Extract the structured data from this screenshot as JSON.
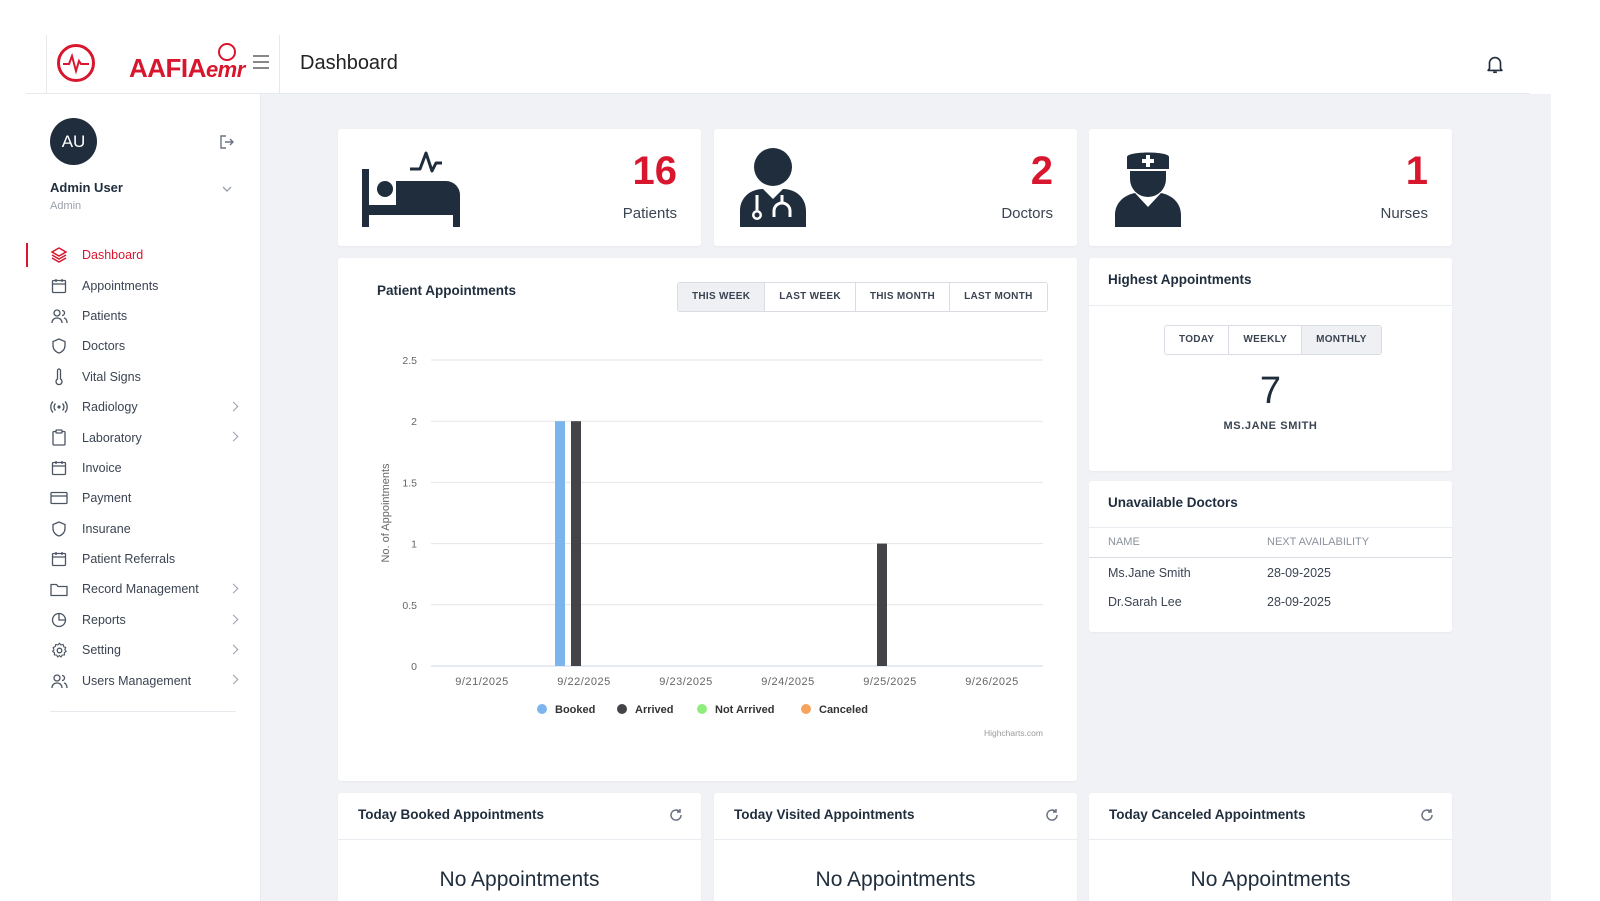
{
  "brand": {
    "logo_text": "AAFIA",
    "logo_suffix": "emr"
  },
  "header": {
    "title": "Dashboard",
    "bell_icon": "bell-icon"
  },
  "user": {
    "initials": "AU",
    "name": "Admin User",
    "role": "Admin"
  },
  "sidebar": {
    "items": [
      {
        "label": "Dashboard",
        "icon": "layers-icon",
        "active": true,
        "has_children": false
      },
      {
        "label": "Appointments",
        "icon": "calendar-icon",
        "active": false,
        "has_children": false
      },
      {
        "label": "Patients",
        "icon": "users-icon",
        "active": false,
        "has_children": false
      },
      {
        "label": "Doctors",
        "icon": "shield-icon",
        "active": false,
        "has_children": false
      },
      {
        "label": "Vital Signs",
        "icon": "thermometer-icon",
        "active": false,
        "has_children": false
      },
      {
        "label": "Radiology",
        "icon": "radio-waves-icon",
        "active": false,
        "has_children": true
      },
      {
        "label": "Laboratory",
        "icon": "clipboard-icon",
        "active": false,
        "has_children": true
      },
      {
        "label": "Invoice",
        "icon": "calendar-icon",
        "active": false,
        "has_children": false
      },
      {
        "label": "Payment",
        "icon": "credit-card-icon",
        "active": false,
        "has_children": false
      },
      {
        "label": "Insurane",
        "icon": "shield-icon",
        "active": false,
        "has_children": false
      },
      {
        "label": "Patient Referrals",
        "icon": "calendar-icon",
        "active": false,
        "has_children": false
      },
      {
        "label": "Record Management",
        "icon": "folder-icon",
        "active": false,
        "has_children": true
      },
      {
        "label": "Reports",
        "icon": "pie-chart-icon",
        "active": false,
        "has_children": true
      },
      {
        "label": "Setting",
        "icon": "gear-icon",
        "active": false,
        "has_children": true
      },
      {
        "label": "Users Management",
        "icon": "users-icon",
        "active": false,
        "has_children": true
      }
    ]
  },
  "stats": {
    "patients": {
      "value": "16",
      "label": "Patients"
    },
    "doctors": {
      "value": "2",
      "label": "Doctors"
    },
    "nurses": {
      "value": "1",
      "label": "Nurses"
    }
  },
  "appointments_chart": {
    "title": "Patient Appointments",
    "filters": [
      "THIS WEEK",
      "LAST WEEK",
      "THIS MONTH",
      "LAST MONTH"
    ],
    "active_filter": "THIS WEEK",
    "credit": "Highcharts.com"
  },
  "chart_data": {
    "type": "bar",
    "title": "Patient Appointments",
    "xlabel": "",
    "ylabel": "No. of Appointments",
    "ylim": [
      0,
      2.5
    ],
    "yticks": [
      "0",
      "0.5",
      "1",
      "1.5",
      "2",
      "2.5"
    ],
    "categories": [
      "9/21/2025",
      "9/22/2025",
      "9/23/2025",
      "9/24/2025",
      "9/25/2025",
      "9/26/2025"
    ],
    "series": [
      {
        "name": "Booked",
        "color": "#7cb5ec",
        "values": [
          0,
          2,
          0,
          0,
          0,
          0
        ]
      },
      {
        "name": "Arrived",
        "color": "#434348",
        "values": [
          0,
          2,
          0,
          0,
          1,
          0
        ]
      },
      {
        "name": "Not Arrived",
        "color": "#90ed7d",
        "values": [
          0,
          0,
          0,
          0,
          0,
          0
        ]
      },
      {
        "name": "Canceled",
        "color": "#f7a35c",
        "values": [
          0,
          0,
          0,
          0,
          0,
          0
        ]
      }
    ],
    "grid": true,
    "legend": "bottom"
  },
  "highest": {
    "title": "Highest Appointments",
    "filters": [
      "TODAY",
      "WEEKLY",
      "MONTHLY"
    ],
    "active_filter": "MONTHLY",
    "count": "7",
    "name": "MS.JANE SMITH"
  },
  "unavailable": {
    "title": "Unavailable Doctors",
    "columns": [
      "NAME",
      "NEXT AVAILABILITY"
    ],
    "rows": [
      {
        "name": "Ms.Jane Smith",
        "next": "28-09-2025"
      },
      {
        "name": "Dr.Sarah Lee",
        "next": "28-09-2025"
      }
    ]
  },
  "today_cards": [
    {
      "title": "Today Booked Appointments",
      "empty": "No Appointments"
    },
    {
      "title": "Today Visited Appointments",
      "empty": "No Appointments"
    },
    {
      "title": "Today Canceled Appointments",
      "empty": "No Appointments"
    }
  ],
  "colors": {
    "brand": "#d8172f",
    "dark": "#1f2d3d",
    "background": "#f1f2f5"
  }
}
